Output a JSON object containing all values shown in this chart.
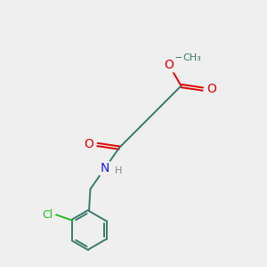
{
  "background_color": "#efefef",
  "bond_color": "#3a7a6a",
  "O_color": "#dd0000",
  "N_color": "#1a1aee",
  "Cl_color": "#22bb22",
  "H_color": "#888888",
  "figsize": [
    3.0,
    3.0
  ],
  "dpi": 100,
  "xlim": [
    0,
    10
  ],
  "ylim": [
    0,
    10
  ]
}
